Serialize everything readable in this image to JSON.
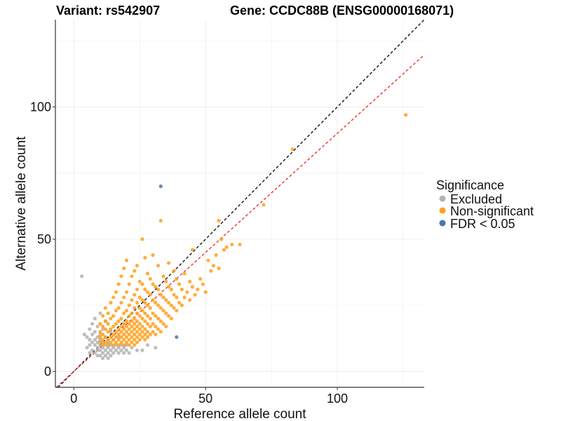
{
  "chart_data": {
    "type": "scatter",
    "title_left": "Variant: rs542907",
    "title_right": "Gene: CCDC88B (ENSG00000168071)",
    "xlabel": "Reference allele count",
    "ylabel": "Alternative allele count",
    "xlim": [
      -7,
      133
    ],
    "ylim": [
      -6,
      133
    ],
    "x_ticks": [
      0,
      50,
      100
    ],
    "y_ticks": [
      0,
      50,
      100
    ],
    "grid": true,
    "legend": {
      "title": "Significance",
      "position": "right",
      "entries": [
        {
          "label": "Excluded",
          "color": "#b3b3b3"
        },
        {
          "label": "Non-significant",
          "color": "#ff9f1a"
        },
        {
          "label": "FDR < 0.05",
          "color": "#4a78a8"
        }
      ]
    },
    "reference_lines": [
      {
        "name": "identity",
        "slope": 1.0,
        "intercept": 0,
        "color": "#000000",
        "style": "dashed"
      },
      {
        "name": "fit",
        "slope": 0.9,
        "intercept": 0,
        "color": "#e8281e",
        "style": "dashed"
      }
    ],
    "series": [
      {
        "name": "Excluded",
        "color": "#b3b3b3",
        "points": [
          [
            3,
            36
          ],
          [
            4,
            14
          ],
          [
            5,
            13
          ],
          [
            6,
            12
          ],
          [
            6,
            16
          ],
          [
            7,
            11
          ],
          [
            7,
            14
          ],
          [
            7,
            18
          ],
          [
            8,
            10
          ],
          [
            8,
            12
          ],
          [
            8,
            15
          ],
          [
            8,
            20
          ],
          [
            9,
            9
          ],
          [
            9,
            11
          ],
          [
            9,
            13
          ],
          [
            9,
            17
          ],
          [
            10,
            8
          ],
          [
            10,
            10
          ],
          [
            10,
            12
          ],
          [
            10,
            14
          ],
          [
            10,
            22
          ],
          [
            11,
            7
          ],
          [
            11,
            9
          ],
          [
            11,
            11
          ],
          [
            11,
            16
          ],
          [
            12,
            8
          ],
          [
            12,
            10
          ],
          [
            12,
            13
          ],
          [
            12,
            19
          ],
          [
            13,
            7
          ],
          [
            13,
            9
          ],
          [
            13,
            11
          ],
          [
            14,
            8
          ],
          [
            14,
            10
          ],
          [
            14,
            15
          ],
          [
            15,
            7
          ],
          [
            15,
            9
          ],
          [
            15,
            12
          ],
          [
            16,
            8
          ],
          [
            16,
            10
          ],
          [
            17,
            7
          ],
          [
            17,
            9
          ],
          [
            17,
            13
          ],
          [
            18,
            8
          ],
          [
            18,
            10
          ],
          [
            19,
            7
          ],
          [
            19,
            9
          ],
          [
            20,
            8
          ],
          [
            20,
            10
          ],
          [
            21,
            7
          ],
          [
            22,
            9
          ],
          [
            24,
            8
          ],
          [
            26,
            8
          ],
          [
            28,
            10
          ],
          [
            31,
            9
          ],
          [
            9,
            8
          ],
          [
            10,
            6
          ],
          [
            11,
            5
          ],
          [
            12,
            6
          ],
          [
            13,
            5
          ],
          [
            14,
            6
          ],
          [
            6,
            10
          ],
          [
            7,
            8
          ],
          [
            8,
            7
          ],
          [
            9,
            6
          ],
          [
            5,
            9
          ],
          [
            6,
            7
          ]
        ]
      },
      {
        "name": "Non-significant",
        "color": "#ff9f1a",
        "points": [
          [
            10,
            11
          ],
          [
            10,
            13
          ],
          [
            10,
            15
          ],
          [
            10,
            18
          ],
          [
            11,
            10
          ],
          [
            11,
            12
          ],
          [
            11,
            14
          ],
          [
            11,
            17
          ],
          [
            11,
            21
          ],
          [
            12,
            11
          ],
          [
            12,
            13
          ],
          [
            12,
            16
          ],
          [
            12,
            19
          ],
          [
            12,
            24
          ],
          [
            13,
            10
          ],
          [
            13,
            12
          ],
          [
            13,
            15
          ],
          [
            13,
            18
          ],
          [
            13,
            22
          ],
          [
            14,
            11
          ],
          [
            14,
            13
          ],
          [
            14,
            16
          ],
          [
            14,
            20
          ],
          [
            14,
            26
          ],
          [
            15,
            10
          ],
          [
            15,
            12
          ],
          [
            15,
            14
          ],
          [
            15,
            17
          ],
          [
            15,
            21
          ],
          [
            15,
            28
          ],
          [
            16,
            11
          ],
          [
            16,
            13
          ],
          [
            16,
            15
          ],
          [
            16,
            18
          ],
          [
            16,
            23
          ],
          [
            16,
            30
          ],
          [
            17,
            10
          ],
          [
            17,
            12
          ],
          [
            17,
            14
          ],
          [
            17,
            16
          ],
          [
            17,
            19
          ],
          [
            17,
            24
          ],
          [
            17,
            33
          ],
          [
            18,
            11
          ],
          [
            18,
            13
          ],
          [
            18,
            15
          ],
          [
            18,
            17
          ],
          [
            18,
            20
          ],
          [
            18,
            26
          ],
          [
            18,
            36
          ],
          [
            19,
            10
          ],
          [
            19,
            12
          ],
          [
            19,
            14
          ],
          [
            19,
            16
          ],
          [
            19,
            18
          ],
          [
            19,
            22
          ],
          [
            19,
            28
          ],
          [
            19,
            39
          ],
          [
            20,
            11
          ],
          [
            20,
            13
          ],
          [
            20,
            15
          ],
          [
            20,
            17
          ],
          [
            20,
            19
          ],
          [
            20,
            23
          ],
          [
            20,
            30
          ],
          [
            20,
            42
          ],
          [
            21,
            10
          ],
          [
            21,
            12
          ],
          [
            21,
            14
          ],
          [
            21,
            16
          ],
          [
            21,
            18
          ],
          [
            21,
            21
          ],
          [
            21,
            25
          ],
          [
            21,
            33
          ],
          [
            22,
            11
          ],
          [
            22,
            13
          ],
          [
            22,
            15
          ],
          [
            22,
            17
          ],
          [
            22,
            19
          ],
          [
            22,
            22
          ],
          [
            22,
            27
          ],
          [
            22,
            36
          ],
          [
            23,
            10
          ],
          [
            23,
            12
          ],
          [
            23,
            14
          ],
          [
            23,
            16
          ],
          [
            23,
            18
          ],
          [
            23,
            20
          ],
          [
            23,
            24
          ],
          [
            23,
            29
          ],
          [
            23,
            38
          ],
          [
            24,
            11
          ],
          [
            24,
            13
          ],
          [
            24,
            15
          ],
          [
            24,
            17
          ],
          [
            24,
            19
          ],
          [
            24,
            22
          ],
          [
            24,
            26
          ],
          [
            24,
            31
          ],
          [
            24,
            40
          ],
          [
            25,
            12
          ],
          [
            25,
            14
          ],
          [
            25,
            16
          ],
          [
            25,
            18
          ],
          [
            25,
            21
          ],
          [
            25,
            24
          ],
          [
            25,
            28
          ],
          [
            25,
            34
          ],
          [
            26,
            13
          ],
          [
            26,
            15
          ],
          [
            26,
            17
          ],
          [
            26,
            20
          ],
          [
            26,
            23
          ],
          [
            26,
            27
          ],
          [
            26,
            33
          ],
          [
            26,
            50
          ],
          [
            27,
            12
          ],
          [
            27,
            14
          ],
          [
            27,
            16
          ],
          [
            27,
            19
          ],
          [
            27,
            22
          ],
          [
            27,
            26
          ],
          [
            27,
            31
          ],
          [
            27,
            43
          ],
          [
            28,
            13
          ],
          [
            28,
            15
          ],
          [
            28,
            18
          ],
          [
            28,
            21
          ],
          [
            28,
            25
          ],
          [
            28,
            30
          ],
          [
            28,
            37
          ],
          [
            29,
            14
          ],
          [
            29,
            17
          ],
          [
            29,
            20
          ],
          [
            29,
            24
          ],
          [
            29,
            29
          ],
          [
            29,
            35
          ],
          [
            30,
            15
          ],
          [
            30,
            18
          ],
          [
            30,
            22
          ],
          [
            30,
            27
          ],
          [
            30,
            33
          ],
          [
            30,
            44
          ],
          [
            31,
            14
          ],
          [
            31,
            17
          ],
          [
            31,
            21
          ],
          [
            31,
            26
          ],
          [
            31,
            32
          ],
          [
            32,
            16
          ],
          [
            32,
            20
          ],
          [
            32,
            25
          ],
          [
            32,
            31
          ],
          [
            32,
            40
          ],
          [
            33,
            15
          ],
          [
            33,
            19
          ],
          [
            33,
            24
          ],
          [
            33,
            29
          ],
          [
            33,
            57
          ],
          [
            34,
            18
          ],
          [
            34,
            23
          ],
          [
            34,
            28
          ],
          [
            34,
            36
          ],
          [
            35,
            17
          ],
          [
            35,
            22
          ],
          [
            35,
            27
          ],
          [
            35,
            34
          ],
          [
            36,
            21
          ],
          [
            36,
            26
          ],
          [
            36,
            32
          ],
          [
            36,
            41
          ],
          [
            37,
            20
          ],
          [
            37,
            25
          ],
          [
            37,
            31
          ],
          [
            38,
            24
          ],
          [
            38,
            29
          ],
          [
            38,
            38
          ],
          [
            39,
            23
          ],
          [
            39,
            28
          ],
          [
            39,
            35
          ],
          [
            40,
            26
          ],
          [
            40,
            33
          ],
          [
            41,
            25
          ],
          [
            41,
            31
          ],
          [
            42,
            28
          ],
          [
            42,
            37
          ],
          [
            43,
            30
          ],
          [
            44,
            27
          ],
          [
            44,
            34
          ],
          [
            45,
            32
          ],
          [
            45,
            46
          ],
          [
            46,
            29
          ],
          [
            47,
            31
          ],
          [
            48,
            35
          ],
          [
            49,
            33
          ],
          [
            50,
            30
          ],
          [
            51,
            42
          ],
          [
            52,
            38
          ],
          [
            53,
            40
          ],
          [
            54,
            44
          ],
          [
            55,
            57
          ],
          [
            55,
            39
          ],
          [
            56,
            50
          ],
          [
            57,
            46
          ],
          [
            58,
            47
          ],
          [
            60,
            48
          ],
          [
            63,
            48
          ],
          [
            72,
            63
          ],
          [
            83,
            84
          ],
          [
            126,
            97
          ]
        ]
      },
      {
        "name": "FDR < 0.05",
        "color": "#4a78a8",
        "points": [
          [
            33,
            70
          ],
          [
            39,
            13
          ]
        ]
      }
    ]
  }
}
